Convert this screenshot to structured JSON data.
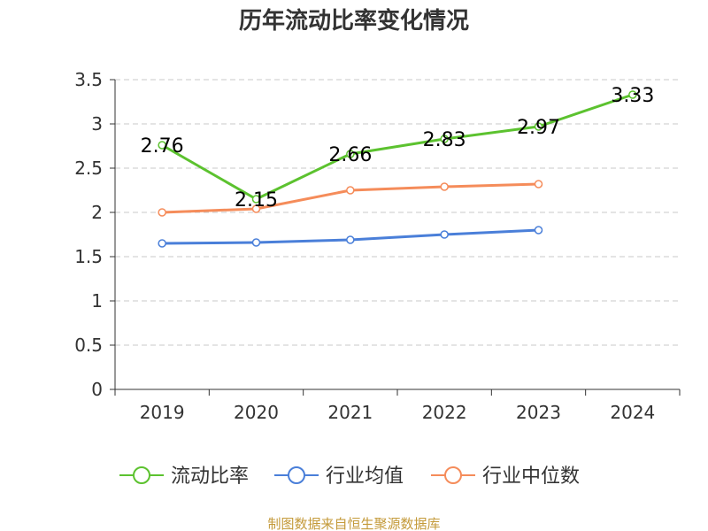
{
  "chart_data": {
    "type": "line",
    "title": "历年流动比率变化情况",
    "categories": [
      "2019",
      "2020",
      "2021",
      "2022",
      "2023",
      "2024"
    ],
    "ylim": [
      0,
      3.5
    ],
    "yticks": [
      "0",
      "0.5",
      "1",
      "1.5",
      "2",
      "2.5",
      "3",
      "3.5"
    ],
    "grid": true,
    "legend_position": "bottom",
    "series": [
      {
        "name": "流动比率",
        "color": "#5cc22f",
        "values": [
          2.76,
          2.15,
          2.66,
          2.83,
          2.97,
          3.33
        ],
        "labels": [
          "2.76",
          "2.15",
          "2.66",
          "2.83",
          "2.97",
          "3.33"
        ]
      },
      {
        "name": "行业均值",
        "color": "#4a7fd9",
        "values": [
          1.65,
          1.66,
          1.69,
          1.75,
          1.8,
          null
        ]
      },
      {
        "name": "行业中位数",
        "color": "#f58c5a",
        "values": [
          2.0,
          2.04,
          2.25,
          2.29,
          2.32,
          null
        ]
      }
    ]
  },
  "source": "制图数据来自恒生聚源数据库"
}
